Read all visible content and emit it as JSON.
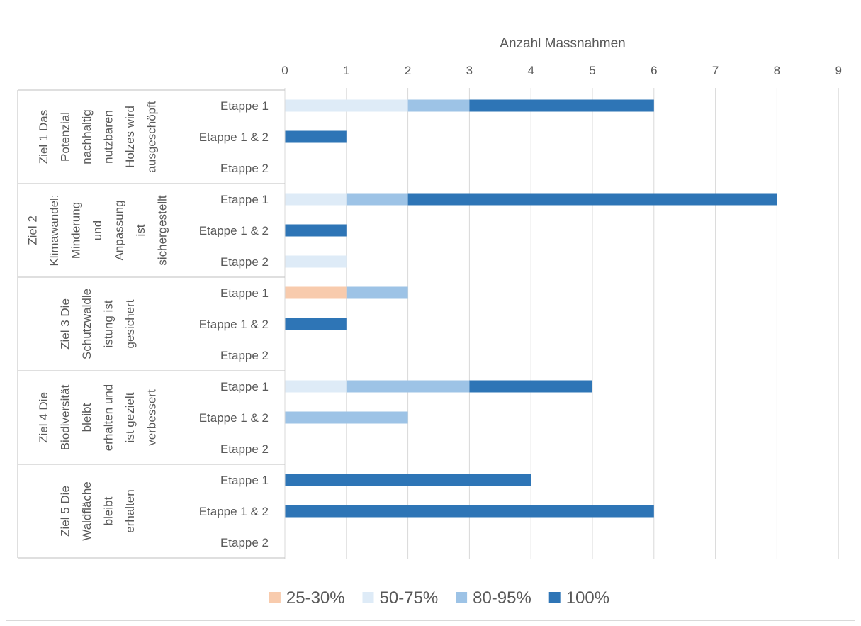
{
  "chart_data": {
    "type": "bar",
    "orientation": "horizontal",
    "stacked": true,
    "title": "",
    "xlabel": "Anzahl Massnahmen",
    "ylabel": "",
    "xlim": [
      0,
      9
    ],
    "xticks": [
      0,
      1,
      2,
      3,
      4,
      5,
      6,
      7,
      8,
      9
    ],
    "x_axis_position": "top",
    "grid": true,
    "legend_position": "bottom",
    "groups": [
      {
        "label": "Ziel 1 Das Potenzial nachhaltig nutzbaren Holzes wird ausgeschöpft",
        "label_lines": [
          "Ziel 1 Das",
          "Potenzial",
          "nachhaltig",
          "nutzbaren",
          "Holzes wird",
          "ausgeschöpft"
        ]
      },
      {
        "label": "Ziel 2 Klimawandel: Minderung und Anpassung ist sichergestellt",
        "label_lines": [
          "Ziel 2",
          "Klimawandel:",
          "Minderung",
          "und",
          "Anpassung",
          "ist",
          "sichergestellt"
        ]
      },
      {
        "label": "Ziel 3 Die Schutzwaldleistung ist gesichert",
        "label_lines": [
          "Ziel 3 Die",
          "Schutzwaldle",
          "istung ist",
          "gesichert"
        ]
      },
      {
        "label": "Ziel 4 Die Biodiversität bleibt erhalten und ist gezielt verbessert",
        "label_lines": [
          "Ziel 4 Die",
          "Biodiversität",
          "bleibt",
          "erhalten und",
          "ist gezielt",
          "verbessert"
        ]
      },
      {
        "label": "Ziel 5 Die Waldfläche bleibt erhalten",
        "label_lines": [
          "Ziel 5 Die",
          "Waldfläche",
          "bleibt",
          "erhalten"
        ]
      }
    ],
    "stage_labels": [
      "Etappe 1",
      "Etappe 1 & 2",
      "Etappe 2"
    ],
    "series": [
      {
        "name": "25-30%",
        "color": "#F8CBAD",
        "values": [
          [
            0,
            0,
            0
          ],
          [
            0,
            0,
            0
          ],
          [
            1,
            0,
            0
          ],
          [
            0,
            0,
            0
          ],
          [
            0,
            0,
            0
          ]
        ]
      },
      {
        "name": "50-75%",
        "color": "#DEEBF7",
        "values": [
          [
            2,
            0,
            0
          ],
          [
            1,
            0,
            1
          ],
          [
            0,
            0,
            0
          ],
          [
            1,
            0,
            0
          ],
          [
            0,
            0,
            0
          ]
        ]
      },
      {
        "name": "80-95%",
        "color": "#9DC3E6",
        "values": [
          [
            1,
            0,
            0
          ],
          [
            1,
            0,
            0
          ],
          [
            1,
            0,
            0
          ],
          [
            2,
            2,
            0
          ],
          [
            0,
            0,
            0
          ]
        ]
      },
      {
        "name": "100%",
        "color": "#2E75B6",
        "values": [
          [
            3,
            1,
            0
          ],
          [
            6,
            1,
            0
          ],
          [
            0,
            1,
            0
          ],
          [
            2,
            0,
            0
          ],
          [
            4,
            6,
            0
          ]
        ]
      }
    ]
  }
}
